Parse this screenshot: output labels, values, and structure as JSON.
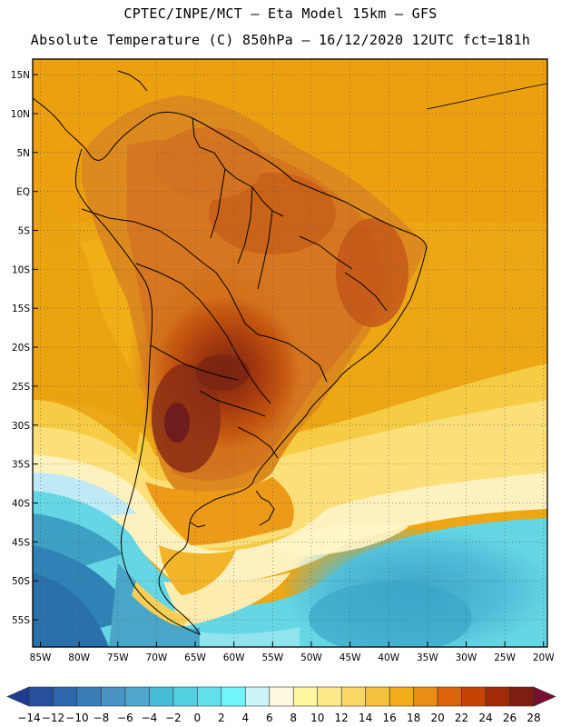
{
  "header": {
    "line1": "CPTEC/INPE/MCT –   Eta Model 15km – GFS",
    "line2": "Absolute Temperature (C) 850hPa – 16/12/2020 12UTC fct=181h"
  },
  "map": {
    "lon_min": -86,
    "lon_max": -19.5,
    "lat_min": -58.5,
    "lat_max": 17,
    "lat_ticks": [
      "15N",
      "10N",
      "5N",
      "EQ",
      "5S",
      "10S",
      "15S",
      "20S",
      "25S",
      "30S",
      "35S",
      "40S",
      "45S",
      "50S",
      "55S"
    ],
    "lat_values": [
      15,
      10,
      5,
      0,
      -5,
      -10,
      -15,
      -20,
      -25,
      -30,
      -35,
      -40,
      -45,
      -50,
      -55
    ],
    "lon_ticks": [
      "85W",
      "80W",
      "75W",
      "70W",
      "65W",
      "60W",
      "55W",
      "50W",
      "45W",
      "40W",
      "35W",
      "30W",
      "25W",
      "20W"
    ],
    "lon_values": [
      -85,
      -80,
      -75,
      -70,
      -65,
      -60,
      -55,
      -50,
      -45,
      -40,
      -35,
      -30,
      -25,
      -20
    ]
  },
  "colorbar": {
    "labels": [
      "-14",
      "-12",
      "-10",
      "-8",
      "-6",
      "-4",
      "-2",
      "0",
      "2",
      "4",
      "6",
      "8",
      "10",
      "12",
      "14",
      "16",
      "18",
      "20",
      "22",
      "24",
      "26",
      "28"
    ],
    "colors": [
      "#1e3c96",
      "#24509e",
      "#2e66ab",
      "#3a7db8",
      "#4a93c5",
      "#4fa8cc",
      "#46bcd6",
      "#52cfe0",
      "#62e0ea",
      "#70f6f8",
      "#cdf4fb",
      "#fff8e0",
      "#fef6a0",
      "#fde98a",
      "#fbd866",
      "#f5c23e",
      "#f2ac1a",
      "#eb8c15",
      "#dc6308",
      "#c54405",
      "#a22a04",
      "#7e1d10",
      "#7a1030"
    ]
  }
}
